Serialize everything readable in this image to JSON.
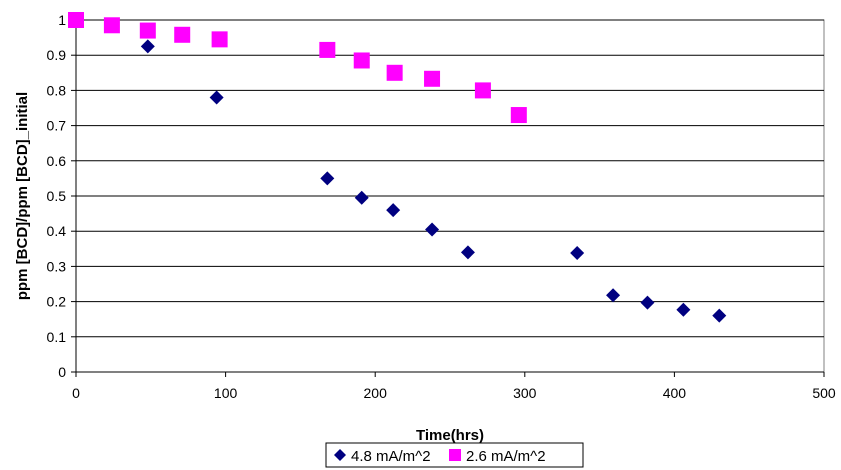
{
  "chart_data": {
    "type": "scatter",
    "title": "",
    "xlabel": "Time(hrs)",
    "ylabel": "ppm [BCD]/ppm [BCD]_initial",
    "xlim": [
      0,
      500
    ],
    "ylim": [
      0,
      1
    ],
    "x_ticks": [
      "0",
      "100",
      "200",
      "300",
      "400",
      "500"
    ],
    "y_ticks": [
      "0",
      "0.1",
      "0.2",
      "0.3",
      "0.4",
      "0.5",
      "0.6",
      "0.7",
      "0.8",
      "0.9",
      "1"
    ],
    "grid": "horizontal",
    "legend_position": "bottom",
    "series": [
      {
        "name": "4.8 mA/m^2",
        "marker": "diamond",
        "color": "#000080",
        "x": [
          0,
          48,
          94,
          168,
          191,
          212,
          238,
          262,
          335,
          359,
          382,
          406,
          430
        ],
        "y": [
          1.0,
          0.925,
          0.78,
          0.55,
          0.495,
          0.46,
          0.405,
          0.34,
          0.338,
          0.218,
          0.197,
          0.177,
          0.16
        ]
      },
      {
        "name": "2.6 mA/m^2",
        "marker": "square",
        "color": "#ff00ff",
        "x": [
          0,
          24,
          48,
          71,
          96,
          168,
          191,
          213,
          238,
          272,
          296
        ],
        "y": [
          1.0,
          0.985,
          0.97,
          0.958,
          0.945,
          0.915,
          0.885,
          0.85,
          0.833,
          0.8,
          0.73
        ]
      }
    ]
  }
}
